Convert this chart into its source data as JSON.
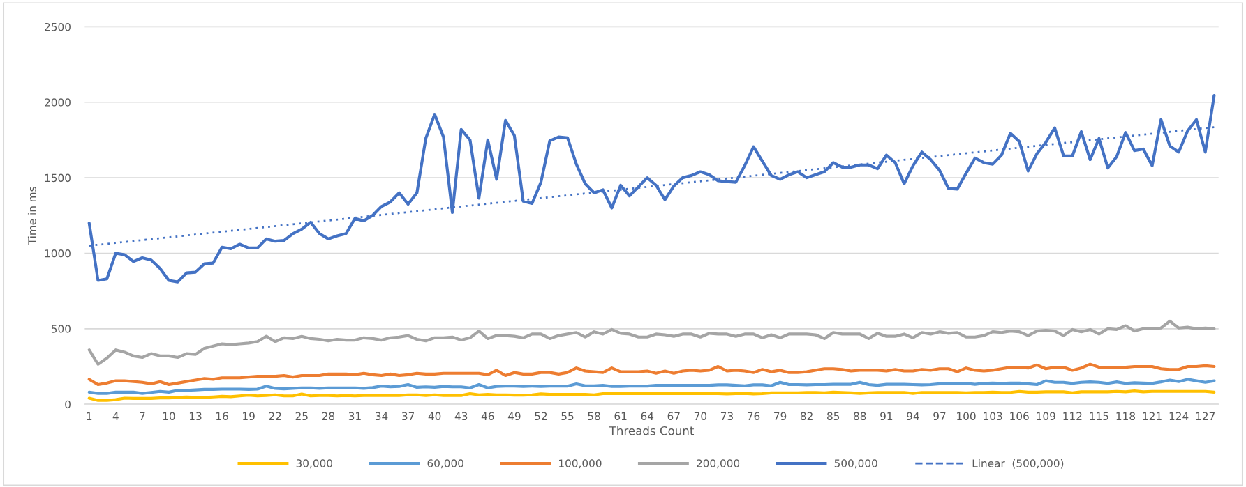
{
  "chart_data": {
    "type": "line",
    "xlabel": "Threads Count",
    "ylabel": "Time in ms",
    "x": [
      1,
      2,
      3,
      4,
      5,
      6,
      7,
      8,
      9,
      10,
      11,
      12,
      13,
      14,
      15,
      16,
      17,
      18,
      19,
      20,
      21,
      22,
      23,
      24,
      25,
      26,
      27,
      28,
      29,
      30,
      31,
      32,
      33,
      34,
      35,
      36,
      37,
      38,
      39,
      40,
      41,
      42,
      43,
      44,
      45,
      46,
      47,
      48,
      49,
      50,
      51,
      52,
      53,
      54,
      55,
      56,
      57,
      58,
      59,
      60,
      61,
      62,
      63,
      64,
      65,
      66,
      67,
      68,
      69,
      70,
      71,
      72,
      73,
      74,
      75,
      76,
      77,
      78,
      79,
      80,
      81,
      82,
      83,
      84,
      85,
      86,
      87,
      88,
      89,
      90,
      91,
      92,
      93,
      94,
      95,
      96,
      97,
      98,
      99,
      100,
      101,
      102,
      103,
      104,
      105,
      106,
      107,
      108,
      109,
      110,
      111,
      112,
      113,
      114,
      115,
      116,
      117,
      118,
      119,
      120,
      121,
      122,
      123,
      124,
      125,
      126,
      127,
      128
    ],
    "xlim": [
      0.5,
      128.5
    ],
    "xticks": [
      1,
      4,
      7,
      10,
      13,
      16,
      19,
      22,
      25,
      28,
      31,
      34,
      37,
      40,
      43,
      46,
      49,
      52,
      55,
      58,
      61,
      64,
      67,
      70,
      73,
      76,
      79,
      82,
      85,
      88,
      91,
      94,
      97,
      100,
      103,
      106,
      109,
      112,
      115,
      118,
      121,
      124,
      127
    ],
    "ylim": [
      0,
      2500
    ],
    "yticks": [
      0,
      500,
      1000,
      1500,
      2000,
      2500
    ],
    "grid": "y",
    "legend": "bottom",
    "series": [
      {
        "name": "30,000",
        "color": "#ffc000",
        "values": [
          40,
          25,
          25,
          30,
          40,
          38,
          38,
          38,
          42,
          42,
          45,
          48,
          45,
          45,
          48,
          52,
          50,
          55,
          60,
          55,
          58,
          62,
          55,
          55,
          68,
          55,
          58,
          58,
          55,
          58,
          55,
          58,
          58,
          58,
          58,
          58,
          62,
          62,
          58,
          62,
          58,
          58,
          58,
          70,
          62,
          65,
          62,
          62,
          60,
          60,
          62,
          68,
          65,
          65,
          65,
          65,
          65,
          62,
          70,
          70,
          70,
          70,
          70,
          70,
          70,
          70,
          70,
          70,
          70,
          70,
          70,
          70,
          68,
          70,
          72,
          68,
          70,
          75,
          75,
          75,
          75,
          78,
          78,
          75,
          80,
          78,
          75,
          72,
          75,
          78,
          78,
          78,
          78,
          72,
          78,
          78,
          78,
          78,
          78,
          75,
          78,
          78,
          80,
          78,
          78,
          85,
          80,
          80,
          82,
          82,
          82,
          75,
          82,
          82,
          82,
          82,
          85,
          82,
          88,
          82,
          85,
          85,
          85,
          85,
          85,
          85,
          85,
          80
        ]
      },
      {
        "name": "60,000",
        "color": "#5b9bd5",
        "values": [
          80,
          72,
          72,
          80,
          80,
          80,
          72,
          78,
          85,
          80,
          92,
          92,
          95,
          98,
          98,
          100,
          100,
          100,
          98,
          100,
          120,
          105,
          102,
          105,
          108,
          108,
          105,
          108,
          108,
          108,
          108,
          105,
          110,
          120,
          115,
          118,
          130,
          112,
          115,
          112,
          118,
          115,
          115,
          108,
          130,
          108,
          118,
          120,
          120,
          118,
          120,
          118,
          120,
          120,
          120,
          135,
          122,
          122,
          125,
          118,
          118,
          120,
          120,
          120,
          125,
          125,
          125,
          125,
          125,
          125,
          125,
          128,
          128,
          125,
          122,
          128,
          128,
          122,
          145,
          130,
          130,
          128,
          130,
          130,
          132,
          132,
          132,
          145,
          130,
          125,
          132,
          132,
          132,
          130,
          128,
          130,
          135,
          138,
          138,
          138,
          132,
          138,
          140,
          138,
          140,
          140,
          135,
          130,
          155,
          145,
          145,
          138,
          145,
          148,
          145,
          138,
          148,
          138,
          142,
          140,
          138,
          148,
          160,
          150,
          165,
          155,
          145,
          155
        ]
      },
      {
        "name": "100,000",
        "color": "#ed7d31",
        "values": [
          165,
          130,
          140,
          155,
          155,
          150,
          145,
          135,
          150,
          130,
          140,
          150,
          160,
          170,
          165,
          175,
          175,
          175,
          180,
          185,
          185,
          185,
          190,
          180,
          190,
          190,
          190,
          200,
          200,
          200,
          195,
          205,
          195,
          190,
          200,
          190,
          195,
          205,
          200,
          200,
          205,
          205,
          205,
          205,
          205,
          195,
          225,
          190,
          210,
          200,
          200,
          210,
          210,
          200,
          210,
          240,
          220,
          215,
          210,
          240,
          215,
          215,
          215,
          220,
          205,
          220,
          205,
          220,
          225,
          220,
          225,
          250,
          220,
          225,
          220,
          210,
          230,
          215,
          225,
          210,
          210,
          215,
          225,
          235,
          235,
          230,
          220,
          225,
          225,
          225,
          220,
          230,
          220,
          220,
          230,
          225,
          235,
          235,
          215,
          240,
          225,
          220,
          225,
          235,
          245,
          245,
          240,
          260,
          235,
          245,
          245,
          225,
          240,
          265,
          245,
          245,
          245,
          245,
          250,
          250,
          250,
          235,
          230,
          230,
          250,
          250,
          255,
          250
        ]
      },
      {
        "name": "200,000",
        "color": "#a5a5a5",
        "values": [
          360,
          265,
          305,
          360,
          345,
          320,
          310,
          335,
          320,
          320,
          310,
          335,
          330,
          370,
          385,
          400,
          395,
          400,
          405,
          415,
          450,
          415,
          440,
          435,
          450,
          435,
          430,
          420,
          430,
          425,
          425,
          440,
          435,
          425,
          440,
          445,
          455,
          430,
          420,
          440,
          440,
          445,
          425,
          440,
          485,
          435,
          455,
          455,
          450,
          440,
          465,
          465,
          435,
          455,
          465,
          475,
          445,
          480,
          465,
          495,
          470,
          465,
          445,
          445,
          465,
          460,
          450,
          465,
          465,
          445,
          470,
          465,
          465,
          450,
          465,
          465,
          440,
          460,
          440,
          465,
          465,
          465,
          460,
          435,
          475,
          465,
          465,
          465,
          435,
          470,
          450,
          450,
          465,
          440,
          475,
          465,
          480,
          470,
          475,
          445,
          445,
          455,
          480,
          475,
          485,
          480,
          455,
          485,
          490,
          485,
          455,
          495,
          480,
          495,
          465,
          500,
          495,
          520,
          485,
          500,
          500,
          505,
          550,
          505,
          510,
          500,
          505,
          500
        ]
      },
      {
        "name": "500,000",
        "color": "#4472c4",
        "values": [
          1200,
          820,
          830,
          1000,
          990,
          945,
          970,
          955,
          900,
          820,
          810,
          870,
          875,
          930,
          935,
          1040,
          1030,
          1060,
          1035,
          1035,
          1095,
          1080,
          1085,
          1130,
          1160,
          1205,
          1130,
          1095,
          1115,
          1130,
          1230,
          1215,
          1250,
          1310,
          1340,
          1400,
          1325,
          1400,
          1760,
          1920,
          1770,
          1270,
          1820,
          1750,
          1365,
          1750,
          1490,
          1880,
          1780,
          1345,
          1330,
          1470,
          1745,
          1770,
          1765,
          1590,
          1460,
          1400,
          1420,
          1300,
          1450,
          1380,
          1440,
          1500,
          1450,
          1355,
          1445,
          1500,
          1515,
          1540,
          1520,
          1480,
          1475,
          1470,
          1580,
          1705,
          1610,
          1515,
          1490,
          1520,
          1540,
          1500,
          1520,
          1540,
          1600,
          1570,
          1570,
          1585,
          1585,
          1560,
          1650,
          1600,
          1460,
          1580,
          1670,
          1620,
          1550,
          1430,
          1425,
          1530,
          1630,
          1600,
          1590,
          1650,
          1795,
          1740,
          1545,
          1660,
          1735,
          1830,
          1645,
          1645,
          1805,
          1620,
          1760,
          1565,
          1640,
          1800,
          1680,
          1690,
          1580,
          1885,
          1710,
          1670,
          1810,
          1885,
          1670,
          2045
        ]
      },
      {
        "name": "Linear  (500,000)",
        "color": "#4472c4",
        "type": "line",
        "line_style": "dotted",
        "x": [
          1,
          128
        ],
        "values": [
          1050,
          1835
        ]
      }
    ]
  }
}
